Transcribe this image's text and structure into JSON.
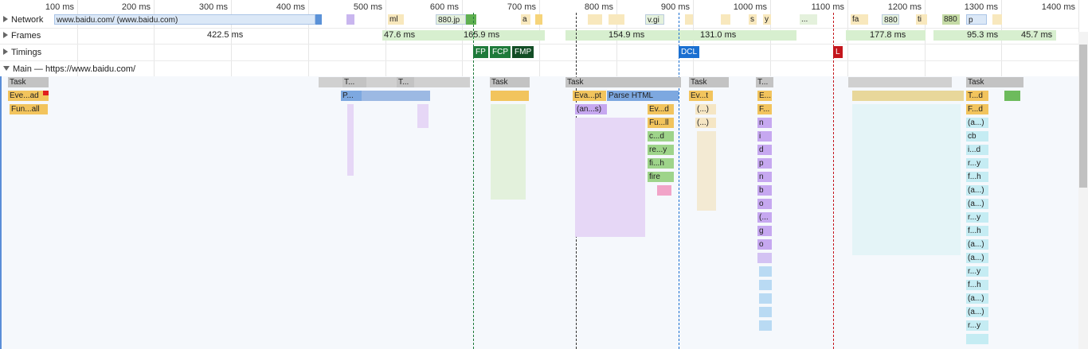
{
  "ruler": {
    "ticks": [
      "100 ms",
      "200 ms",
      "300 ms",
      "400 ms",
      "500 ms",
      "600 ms",
      "700 ms",
      "800 ms",
      "900 ms",
      "1000 ms",
      "1100 ms",
      "1200 ms",
      "1300 ms",
      "1400 ms"
    ]
  },
  "tracks": {
    "network_label": "Network",
    "frames_label": "Frames",
    "timings_label": "Timings",
    "main_label": "Main — https://www.baidu.com/"
  },
  "network": {
    "main_request": "www.baidu.com/ (www.baidu.com)",
    "items": [
      "ml",
      "880.jp",
      "a",
      "v.gi",
      "s",
      "y",
      "...",
      "fa",
      "880",
      "ti",
      "880",
      "p"
    ]
  },
  "frames": {
    "values": [
      "422.5 ms",
      "47.6 ms",
      "165.9 ms",
      "154.9 ms",
      "131.0 ms",
      "177.8 ms",
      "95.3 ms",
      "45.7 ms"
    ]
  },
  "timings": {
    "fp": "FP",
    "fcp": "FCP",
    "fmp": "FMP",
    "dcl": "DCL",
    "l": "L"
  },
  "colors": {
    "task": "#c3c3c3",
    "script": "#f2c45d",
    "render": "#c6a8f0",
    "parse": "#7da8e0",
    "paint": "#9ed48a",
    "fp": "#1e7a3a",
    "dcl": "#1a6fd1",
    "l": "#c4161c"
  },
  "main": {
    "labels": {
      "task1": "Task",
      "evload": "Eve...ad",
      "funcall": "Fun...all",
      "t2": "T...",
      "t3": "T...",
      "task4": "Task",
      "p": "P...",
      "task5": "Task",
      "evapt": "Eva...pt",
      "parse": "Parse HTML",
      "ans": "(an...s)",
      "evd": "Ev...d",
      "full": "Fu...ll",
      "cd": "c...d",
      "rey": "re...y",
      "fih": "fi...h",
      "fire": "fire",
      "task6": "Task",
      "evt": "Ev...t",
      "dots1": "(...)",
      "dots2": "(...)",
      "t7": "T...",
      "e7": "E...",
      "f7": "F...",
      "n1": "n",
      "i1": "i",
      "d1": "d",
      "p1": "p",
      "n2": "n",
      "b1": "b",
      "o1": "o",
      "paren": "(...",
      "g1": "g",
      "o2": "o",
      "task8": "Task",
      "td": "T...d",
      "fd": "F...d",
      "a1": "(a...)",
      "cb": "cb",
      "id": "i...d",
      "ry1": "r...y",
      "fh1": "f...h",
      "a2": "(a...)",
      "a3": "(a...)",
      "ry2": "r...y",
      "fh2": "f...h",
      "a4": "(a...)",
      "a5": "(a...)",
      "ry3": "r...y",
      "fh3": "f...h",
      "a6": "(a...)",
      "a7": "(a...)",
      "ry4": "r...y"
    }
  }
}
